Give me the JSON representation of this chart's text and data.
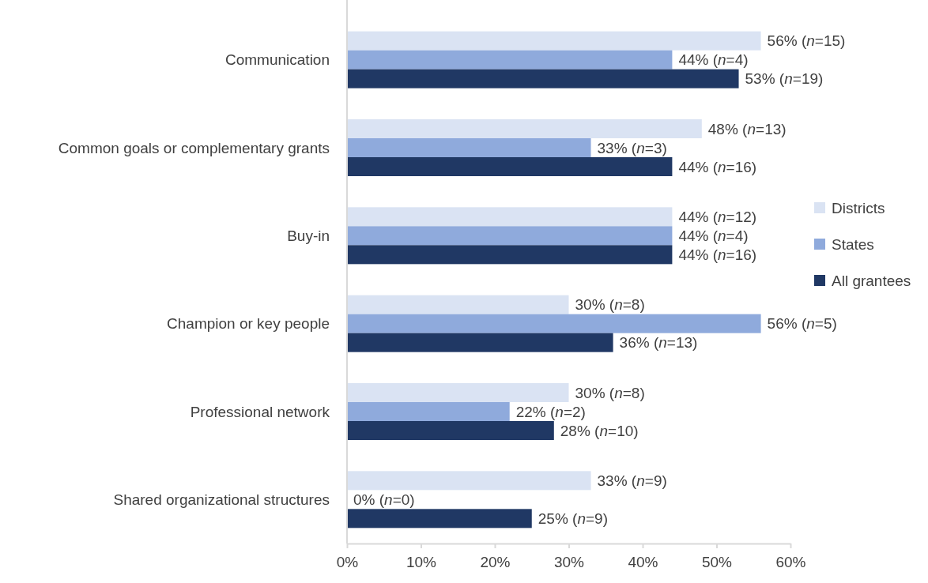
{
  "chart_data": {
    "type": "bar",
    "orientation": "horizontal",
    "categories": [
      "Communication",
      "Common goals or complementary grants",
      "Buy-in",
      "Champion or key people",
      "Professional network",
      "Shared organizational structures"
    ],
    "series": [
      {
        "name": "Districts",
        "color": "#dae3f3",
        "values": [
          56,
          48,
          44,
          30,
          30,
          33
        ],
        "value_labels": [
          "56% (n=15)",
          "48% (n=13)",
          "44% (n=12)",
          "30% (n=8)",
          "30% (n=8)",
          "33% (n=9)"
        ]
      },
      {
        "name": "States",
        "color": "#8faadc",
        "values": [
          44,
          33,
          44,
          56,
          22,
          0
        ],
        "value_labels": [
          "44% (n=4)",
          "33% (n=3)",
          "44% (n=4)",
          "56% (n=5)",
          "22% (n=2)",
          "0% (n=0)"
        ]
      },
      {
        "name": "All grantees",
        "color": "#203864",
        "values": [
          53,
          44,
          44,
          36,
          28,
          25
        ],
        "value_labels": [
          "53% (n=19)",
          "44% (n=16)",
          "44% (n=16)",
          "36% (n=13)",
          "28% (n=10)",
          "25% (n=9)"
        ]
      }
    ],
    "xlim": [
      0,
      60
    ],
    "xticks": [
      {
        "value": 0,
        "label": "0%"
      },
      {
        "value": 10,
        "label": "10%"
      },
      {
        "value": 20,
        "label": "20%"
      },
      {
        "value": 30,
        "label": "30%"
      },
      {
        "value": 40,
        "label": "40%"
      },
      {
        "value": 50,
        "label": "50%"
      },
      {
        "value": 60,
        "label": "60%"
      }
    ],
    "grid": false,
    "legend": "right"
  }
}
